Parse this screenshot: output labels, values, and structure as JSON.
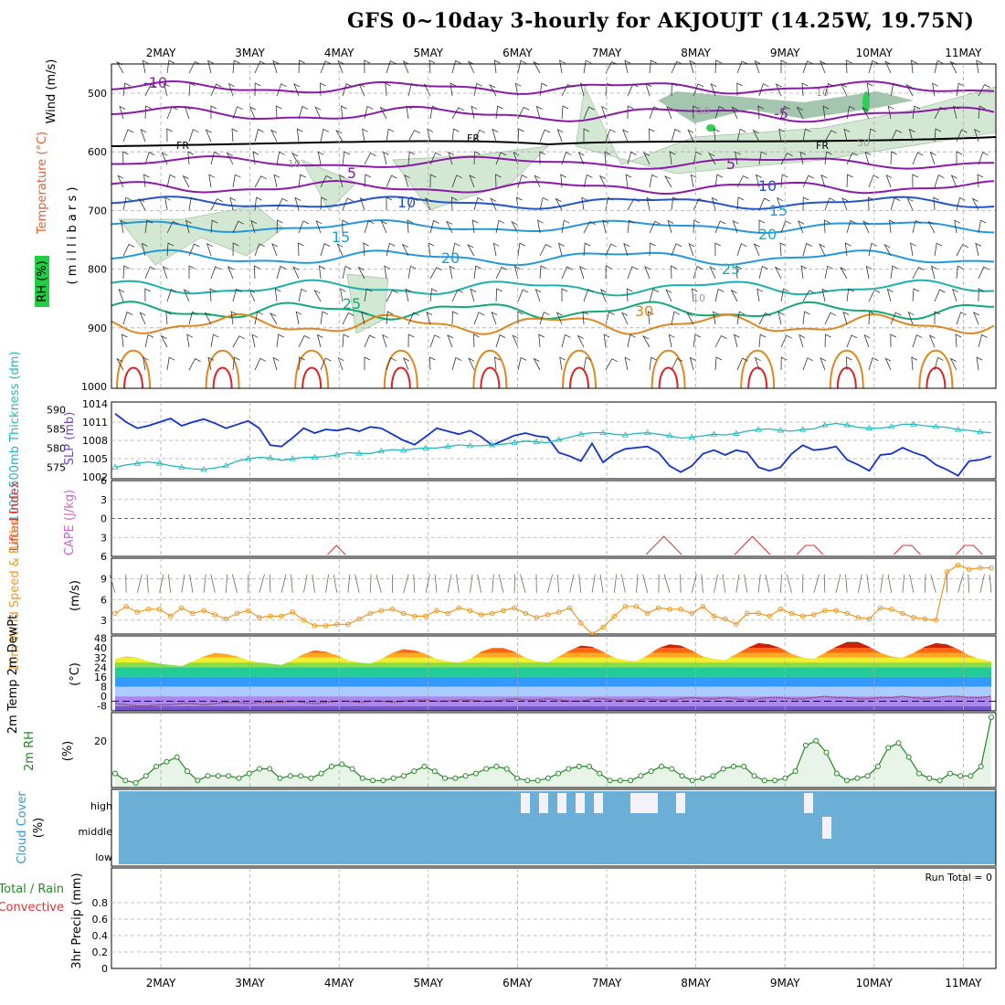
{
  "title": "GFS 0~10day 3-hourly for AKJOUJT (14.25W, 19.75N)",
  "colors": {
    "frame": "#000000",
    "grid": "#aaaaaa",
    "rh_fill": "#cfe6cf",
    "rh_fill_dark": "#8fb89a",
    "rh_fill_green": "#33cc55",
    "temp_purple": "#8a1aa8",
    "temp_blue": "#2255cc",
    "temp_lblue": "#2299dd",
    "temp_teal": "#1bb0b0",
    "temp_green": "#11aa77",
    "temp_orange": "#dd8822",
    "temp_red": "#dd2222",
    "slp_line": "#1133cc",
    "thick_line": "#22b8c0",
    "li_line": "#dd3333",
    "wind_line": "#ee9922",
    "rh2m_line": "#228822",
    "rh2m_fill": "#e8f4e8",
    "cloud_blue": "#6baed6",
    "cloud_gap": "#f4f1f8"
  },
  "days": [
    "2MAY",
    "3MAY",
    "4MAY",
    "5MAY",
    "6MAY",
    "7MAY",
    "8MAY",
    "9MAY",
    "10MAY",
    "11MAY"
  ],
  "panels": {
    "upper_air": {
      "ylabel_wind": "Wind (m/s)",
      "ylabel_temp": "Temperature (°C)",
      "ylabel_rh": "RH (%)",
      "ylabel_p": "( m i l l i b a r s )",
      "pressure_ticks": [
        "500",
        "600",
        "700",
        "800",
        "900",
        "1000"
      ],
      "fr_label": "FR",
      "contour_labels": [
        "-10",
        "-5",
        "5",
        "5",
        "10",
        "10",
        "15",
        "15",
        "20",
        "20",
        "25",
        "25",
        "30",
        "10",
        "10",
        "10",
        "50",
        "50"
      ]
    },
    "slp_thickness": {
      "ylabel_thick": "1000-500mb Thickness (dm)",
      "ylabel_slp": "SLP (mb)",
      "thick_ticks": [
        "590",
        "585",
        "580",
        "575"
      ],
      "slp_ticks": [
        "1014",
        "1011",
        "1008",
        "1005",
        "1002"
      ]
    },
    "cape_li": {
      "ylabel_li": "Lifted Index",
      "ylabel_cape": "CAPE (J/kg)",
      "ticks": [
        "6",
        "3",
        "0",
        "3",
        "6"
      ]
    },
    "wind10m": {
      "ylabel": "10m Wind Speed & Barbs",
      "ylabel_units": "(m/s)",
      "ticks": [
        "9",
        "6",
        "3"
      ]
    },
    "temp2m": {
      "ylabel": "2m Temp 2m DewPt (6hr Min/Max)",
      "ylabel_units": "(°C)",
      "ticks": [
        "48",
        "40",
        "32",
        "24",
        "16",
        "8",
        "0",
        "-8"
      ]
    },
    "rh2m": {
      "ylabel": "2m RH",
      "ylabel_units": "(%)",
      "ticks": [
        "20"
      ]
    },
    "cloud": {
      "ylabel": "Cloud Cover",
      "ylabel_units": "(%)",
      "levels": [
        "high",
        "middle",
        "low"
      ]
    },
    "precip": {
      "ylabel_left": "Total / Rain",
      "ylabel_conv": "Convective",
      "ylabel": "3hr Precip (mm)",
      "run_total": "Run Total = 0",
      "ticks": [
        "0.8",
        "0.6",
        "0.4",
        "0.2",
        "0"
      ]
    }
  },
  "chart_data": [
    {
      "type": "line",
      "panel": "slp_thickness",
      "x_units": "3-hour steps from start (0..79)",
      "series": [
        {
          "name": "SLP (mb)",
          "axis": "right",
          "values": [
            1012.4,
            1011.0,
            1010.0,
            1010.4,
            1011.0,
            1011.6,
            1010.4,
            1011.0,
            1011.5,
            1010.8,
            1010.0,
            1010.6,
            1011.2,
            1010.0,
            1007.2,
            1007.0,
            1008.4,
            1010.0,
            1009.2,
            1009.8,
            1009.6,
            1010.0,
            1009.5,
            1010.2,
            1010.0,
            1009.0,
            1008.0,
            1007.3,
            1008.6,
            1010.0,
            1009.5,
            1009.0,
            1009.6,
            1008.6,
            1007.2,
            1008.0,
            1008.8,
            1009.2,
            1008.7,
            1008.5,
            1006.0,
            1005.4,
            1004.6,
            1007.5,
            1004.4,
            1005.8,
            1006.6,
            1006.8,
            1007.0,
            1006.0,
            1003.8,
            1002.8,
            1003.8,
            1005.8,
            1006.4,
            1005.6,
            1006.4,
            1006.0,
            1003.6,
            1003.0,
            1003.6,
            1005.8,
            1007.2,
            1006.4,
            1006.6,
            1007.0,
            1004.8,
            1004.0,
            1003.0,
            1005.6,
            1005.8,
            1006.8,
            1006.0,
            1005.4,
            1004.0,
            1003.2,
            1002.2,
            1004.6,
            1004.8,
            1005.4
          ]
        },
        {
          "name": "1000-500mb Thickness (dm)",
          "axis": "left",
          "values": [
            575.0,
            575.6,
            576.0,
            576.4,
            576.0,
            575.4,
            575.0,
            574.6,
            574.4,
            574.8,
            575.4,
            576.6,
            577.2,
            577.6,
            577.4,
            576.8,
            577.2,
            577.6,
            577.6,
            577.8,
            578.2,
            578.8,
            578.6,
            578.6,
            579.2,
            579.6,
            579.4,
            579.8,
            580.0,
            580.0,
            580.4,
            580.8,
            580.6,
            580.6,
            580.8,
            581.0,
            581.4,
            581.8,
            581.6,
            581.4,
            582.2,
            582.8,
            583.6,
            584.0,
            584.0,
            583.6,
            583.4,
            583.8,
            584.0,
            583.6,
            583.2,
            582.6,
            582.8,
            583.2,
            583.6,
            583.4,
            583.8,
            584.4,
            584.8,
            585.0,
            584.6,
            584.4,
            584.8,
            585.0,
            586.0,
            586.4,
            586.0,
            585.4,
            585.2,
            585.2,
            585.6,
            586.2,
            586.2,
            585.8,
            585.6,
            585.4,
            584.8,
            584.6,
            584.2,
            584.0
          ]
        }
      ],
      "ylim_slp": [
        1002,
        1014
      ],
      "ylim_thick": [
        572,
        592
      ]
    },
    {
      "type": "line",
      "panel": "cape_li",
      "series": [
        {
          "name": "Lifted Index",
          "visible_segments": [
            [
              24,
              25,
              26
            ],
            [
              60,
              61,
              62,
              63,
              64
            ],
            [
              70,
              71,
              72,
              73,
              74
            ],
            [
              77,
              78,
              79,
              80
            ],
            [
              88,
              89,
              90,
              91
            ],
            [
              95,
              96,
              97,
              98
            ]
          ]
        }
      ],
      "ylim": [
        -6,
        6
      ]
    },
    {
      "type": "line",
      "panel": "wind10m",
      "series": [
        {
          "name": "10m Wind Speed",
          "values": [
            4.0,
            5.0,
            4.2,
            4.6,
            4.6,
            3.6,
            4.8,
            4.0,
            4.4,
            3.8,
            3.2,
            4.0,
            4.4,
            3.4,
            3.6,
            3.6,
            4.2,
            3.0,
            2.2,
            2.2,
            2.4,
            2.4,
            3.2,
            4.0,
            4.4,
            4.6,
            4.0,
            3.6,
            3.6,
            4.4,
            4.0,
            4.8,
            4.4,
            3.8,
            4.0,
            4.4,
            4.8,
            4.0,
            3.4,
            3.8,
            4.2,
            4.8,
            2.6,
            1.0,
            2.0,
            3.6,
            5.0,
            5.0,
            4.0,
            4.8,
            4.6,
            4.6,
            4.0,
            5.0,
            3.6,
            3.2,
            2.4,
            4.0,
            4.0,
            3.6,
            4.6,
            4.0,
            3.6,
            3.8,
            4.4,
            4.4,
            4.0,
            3.4,
            3.2,
            4.8,
            4.6,
            4.0,
            3.4,
            3.2,
            3.0,
            10.0,
            11.0,
            10.4,
            10.6,
            10.6
          ]
        }
      ],
      "ylim": [
        1,
        12
      ]
    },
    {
      "type": "area",
      "panel": "temp2m",
      "series": [
        {
          "name": "2m Temp",
          "values": [
            31,
            33,
            32,
            29,
            27,
            26,
            25,
            29,
            33,
            36,
            35,
            33,
            30,
            28,
            27,
            26,
            30,
            35,
            38,
            37,
            34,
            30,
            28,
            27,
            31,
            36,
            39,
            38,
            35,
            31,
            29,
            28,
            31,
            37,
            40,
            40,
            37,
            32,
            29,
            28,
            33,
            38,
            42,
            41,
            37,
            32,
            30,
            29,
            34,
            40,
            43,
            42,
            38,
            33,
            31,
            30,
            35,
            40,
            44,
            43,
            40,
            35,
            32,
            31,
            36,
            41,
            45,
            45,
            41,
            36,
            33,
            32,
            36,
            41,
            44,
            43,
            39,
            34,
            31,
            29
          ]
        },
        {
          "name": "2m DewPt",
          "values": [
            -6,
            -7,
            -8,
            -8,
            -7,
            -7,
            -6,
            -6,
            -7,
            -6,
            -5,
            -5,
            -6,
            -5,
            -5,
            -5,
            -4,
            -5,
            -6,
            -5,
            -4,
            -4,
            -5,
            -4,
            -4,
            -5,
            -4,
            -3,
            -3,
            -4,
            -4,
            -3,
            -3,
            -4,
            -4,
            -3,
            -2,
            -3,
            -3,
            -2,
            -3,
            -4,
            -4,
            -2,
            -2,
            -3,
            -3,
            -3,
            -2,
            -3,
            -3,
            -2,
            -1,
            -2,
            -2,
            -1,
            -2,
            -3,
            -2,
            -1,
            -1,
            -2,
            -2,
            -1,
            0,
            -1,
            -1,
            -2,
            -2,
            -1,
            -1,
            0,
            -1,
            -2,
            -1,
            0,
            0,
            -1,
            -1,
            0
          ]
        }
      ],
      "ylim": [
        -12,
        50
      ]
    },
    {
      "type": "line",
      "panel": "rh2m",
      "series": [
        {
          "name": "2m RH",
          "values": [
            6,
            3,
            2,
            5,
            9,
            11,
            13,
            7,
            3,
            5,
            5,
            5,
            4,
            6,
            8,
            8,
            4,
            5,
            5,
            4,
            6,
            9,
            10,
            8,
            4,
            3,
            3,
            4,
            5,
            7,
            9,
            7,
            4,
            4,
            5,
            6,
            8,
            9,
            8,
            4,
            3,
            3,
            4,
            6,
            8,
            9,
            9,
            6,
            3,
            3,
            3,
            5,
            7,
            9,
            8,
            5,
            3,
            4,
            5,
            8,
            9,
            9,
            5,
            3,
            3,
            4,
            7,
            18,
            20,
            15,
            6,
            3,
            4,
            5,
            9,
            17,
            19,
            13,
            6,
            4,
            3,
            6,
            5,
            5,
            9,
            30
          ]
        }
      ],
      "ylim": [
        0,
        32
      ]
    },
    {
      "type": "bar",
      "panel": "cloud",
      "series": [
        {
          "name": "Cloud Cover",
          "gaps": [
            {
              "level": "high",
              "cells": [
                [
                  44,
                  45
                ],
                [
                  46,
                  47
                ],
                [
                  48,
                  49
                ],
                [
                  50,
                  51
                ],
                [
                  52,
                  53
                ],
                [
                  56,
                  58
                ],
                [
                  58,
                  59
                ],
                [
                  61,
                  62
                ],
                [
                  75,
                  76
                ]
              ]
            },
            {
              "level": "middle",
              "cells": [
                [
                  77,
                  78
                ]
              ]
            }
          ]
        }
      ]
    },
    {
      "type": "line",
      "panel": "precip",
      "series": [
        {
          "name": "3hr Precip",
          "values": []
        }
      ],
      "ylim": [
        0,
        1
      ]
    }
  ]
}
